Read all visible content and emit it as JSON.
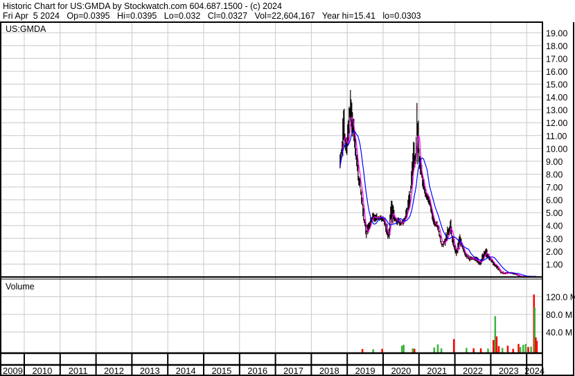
{
  "header": {
    "title_line": "Historic Chart for US:GMDA by Stockwatch.com 604.687.1500 - (c) 2024",
    "quote_line": "Fri Apr  5 2024   Op=0.0395   Hi=0.0395   Lo=0.032   Cl=0.0327   Vol=22,604,167   Year hi=15.41   lo=0.0303"
  },
  "chart_data": [
    {
      "type": "line",
      "panel": "price",
      "title": "US:GMDA",
      "ylim": [
        0,
        20
      ],
      "yticks": [
        "1.00",
        "2.00",
        "3.00",
        "4.00",
        "5.00",
        "6.00",
        "7.00",
        "8.00",
        "9.00",
        "10.00",
        "11.00",
        "12.00",
        "13.00",
        "14.00",
        "15.00",
        "16.00",
        "17.00",
        "18.00",
        "19.00"
      ],
      "xlim": [
        2009.37,
        2024.45
      ],
      "grid": true,
      "colors": {
        "bars": "#000000",
        "close_tick": "#ff0000",
        "short_ma": "#ff00ff",
        "long_ma": "#0000ff"
      },
      "price_points": [
        [
          2018.8,
          8.0,
          10.0
        ],
        [
          2018.86,
          9.5,
          11.0
        ],
        [
          2018.9,
          9.0,
          15.4
        ],
        [
          2018.94,
          9.5,
          12.0
        ],
        [
          2018.99,
          9.2,
          11.0
        ],
        [
          2019.04,
          10.5,
          13.0
        ],
        [
          2019.08,
          11.5,
          14.9
        ],
        [
          2019.13,
          11.0,
          14.0
        ],
        [
          2019.18,
          10.5,
          12.5
        ],
        [
          2019.24,
          8.5,
          11.0
        ],
        [
          2019.3,
          7.0,
          9.0
        ],
        [
          2019.36,
          6.8,
          7.8
        ],
        [
          2019.42,
          5.0,
          6.5
        ],
        [
          2019.47,
          4.0,
          5.0
        ],
        [
          2019.53,
          3.0,
          4.0
        ],
        [
          2019.6,
          3.5,
          4.5
        ],
        [
          2019.68,
          4.2,
          5.0
        ],
        [
          2019.76,
          4.3,
          5.2
        ],
        [
          2019.85,
          4.2,
          4.9
        ],
        [
          2019.95,
          4.3,
          4.8
        ],
        [
          2020.03,
          4.0,
          4.8
        ],
        [
          2020.11,
          3.0,
          4.2
        ],
        [
          2020.17,
          2.7,
          3.8
        ],
        [
          2020.23,
          4.0,
          7.4
        ],
        [
          2020.3,
          4.3,
          5.3
        ],
        [
          2020.38,
          4.0,
          4.8
        ],
        [
          2020.48,
          3.9,
          4.5
        ],
        [
          2020.58,
          4.0,
          4.6
        ],
        [
          2020.68,
          4.5,
          6.0
        ],
        [
          2020.76,
          5.5,
          7.2
        ],
        [
          2020.84,
          8.0,
          11.2
        ],
        [
          2020.9,
          8.0,
          10.5
        ],
        [
          2020.95,
          9.0,
          15.0
        ],
        [
          2021.0,
          8.0,
          10.5
        ],
        [
          2021.06,
          7.5,
          9.3
        ],
        [
          2021.13,
          6.5,
          8.0
        ],
        [
          2021.2,
          6.0,
          6.8
        ],
        [
          2021.28,
          5.5,
          6.5
        ],
        [
          2021.36,
          4.5,
          5.5
        ],
        [
          2021.44,
          3.8,
          4.5
        ],
        [
          2021.52,
          3.6,
          4.3
        ],
        [
          2021.58,
          2.8,
          3.6
        ],
        [
          2021.64,
          2.2,
          2.8
        ],
        [
          2021.72,
          2.3,
          3.2
        ],
        [
          2021.8,
          3.0,
          4.0
        ],
        [
          2021.88,
          3.3,
          4.7
        ],
        [
          2021.96,
          2.0,
          3.0
        ],
        [
          2022.05,
          1.6,
          2.2
        ],
        [
          2022.13,
          2.0,
          3.6
        ],
        [
          2022.2,
          2.2,
          2.8
        ],
        [
          2022.3,
          1.5,
          2.0
        ],
        [
          2022.4,
          1.2,
          1.7
        ],
        [
          2022.5,
          1.2,
          1.6
        ],
        [
          2022.6,
          1.2,
          1.6
        ],
        [
          2022.68,
          0.7,
          1.5
        ],
        [
          2022.76,
          1.0,
          1.8
        ],
        [
          2022.84,
          1.5,
          2.5
        ],
        [
          2022.92,
          1.4,
          2.0
        ],
        [
          2023.0,
          1.1,
          1.5
        ],
        [
          2023.1,
          0.8,
          1.2
        ],
        [
          2023.2,
          0.5,
          0.9
        ],
        [
          2023.28,
          0.25,
          0.45
        ],
        [
          2023.4,
          0.2,
          0.4
        ],
        [
          2023.52,
          0.25,
          0.45
        ],
        [
          2023.62,
          0.2,
          0.35
        ],
        [
          2023.72,
          0.1,
          0.3
        ],
        [
          2023.8,
          0.04,
          0.1
        ],
        [
          2023.9,
          0.03,
          0.06
        ]
      ]
    },
    {
      "type": "bar",
      "panel": "volume",
      "title": "Volume",
      "ylim": [
        0,
        160
      ],
      "yticks": [
        "40.0 M",
        "80.0 M",
        "120.0 M"
      ],
      "grid": true,
      "colors": {
        "up": "#3cb33c",
        "down": "#ff0000"
      },
      "bars": [
        [
          2019.4,
          1.5,
          "down"
        ],
        [
          2019.7,
          1.0,
          "up"
        ],
        [
          2019.95,
          2.0,
          "down"
        ],
        [
          2020.5,
          9.0,
          "up"
        ],
        [
          2020.55,
          11.0,
          "up"
        ],
        [
          2020.8,
          3.0,
          "up"
        ],
        [
          2020.85,
          2.0,
          "down"
        ],
        [
          2021.4,
          5.0,
          "up"
        ],
        [
          2021.5,
          12.0,
          "up"
        ],
        [
          2021.6,
          3.0,
          "up"
        ],
        [
          2021.95,
          24.0,
          "down"
        ],
        [
          2022.3,
          4.0,
          "up"
        ],
        [
          2022.5,
          3.0,
          "down"
        ],
        [
          2022.7,
          3.0,
          "down"
        ],
        [
          2022.9,
          2.5,
          "up"
        ],
        [
          2023.05,
          22.0,
          "down"
        ],
        [
          2023.1,
          76.0,
          "up"
        ],
        [
          2023.14,
          30.0,
          "down"
        ],
        [
          2023.2,
          8.0,
          "down"
        ],
        [
          2023.3,
          4.0,
          "up"
        ],
        [
          2023.45,
          9.0,
          "down"
        ],
        [
          2023.6,
          2.0,
          "down"
        ],
        [
          2023.75,
          13.0,
          "down"
        ],
        [
          2023.8,
          6.0,
          "up"
        ],
        [
          2023.88,
          11.0,
          "up"
        ],
        [
          2023.95,
          13.0,
          "up"
        ],
        [
          2024.02,
          6.0,
          "down"
        ],
        [
          2024.1,
          7.0,
          "up"
        ],
        [
          2024.18,
          125.0,
          "down"
        ],
        [
          2024.2,
          96.0,
          "up"
        ],
        [
          2024.23,
          28.0,
          "down"
        ],
        [
          2024.26,
          20.0,
          "down"
        ]
      ]
    }
  ],
  "xaxis": {
    "years": [
      "2009",
      "2010",
      "2011",
      "2012",
      "2013",
      "2014",
      "2015",
      "2016",
      "2017",
      "2018",
      "2019",
      "2020",
      "2021",
      "2022",
      "2023",
      "2024"
    ]
  }
}
